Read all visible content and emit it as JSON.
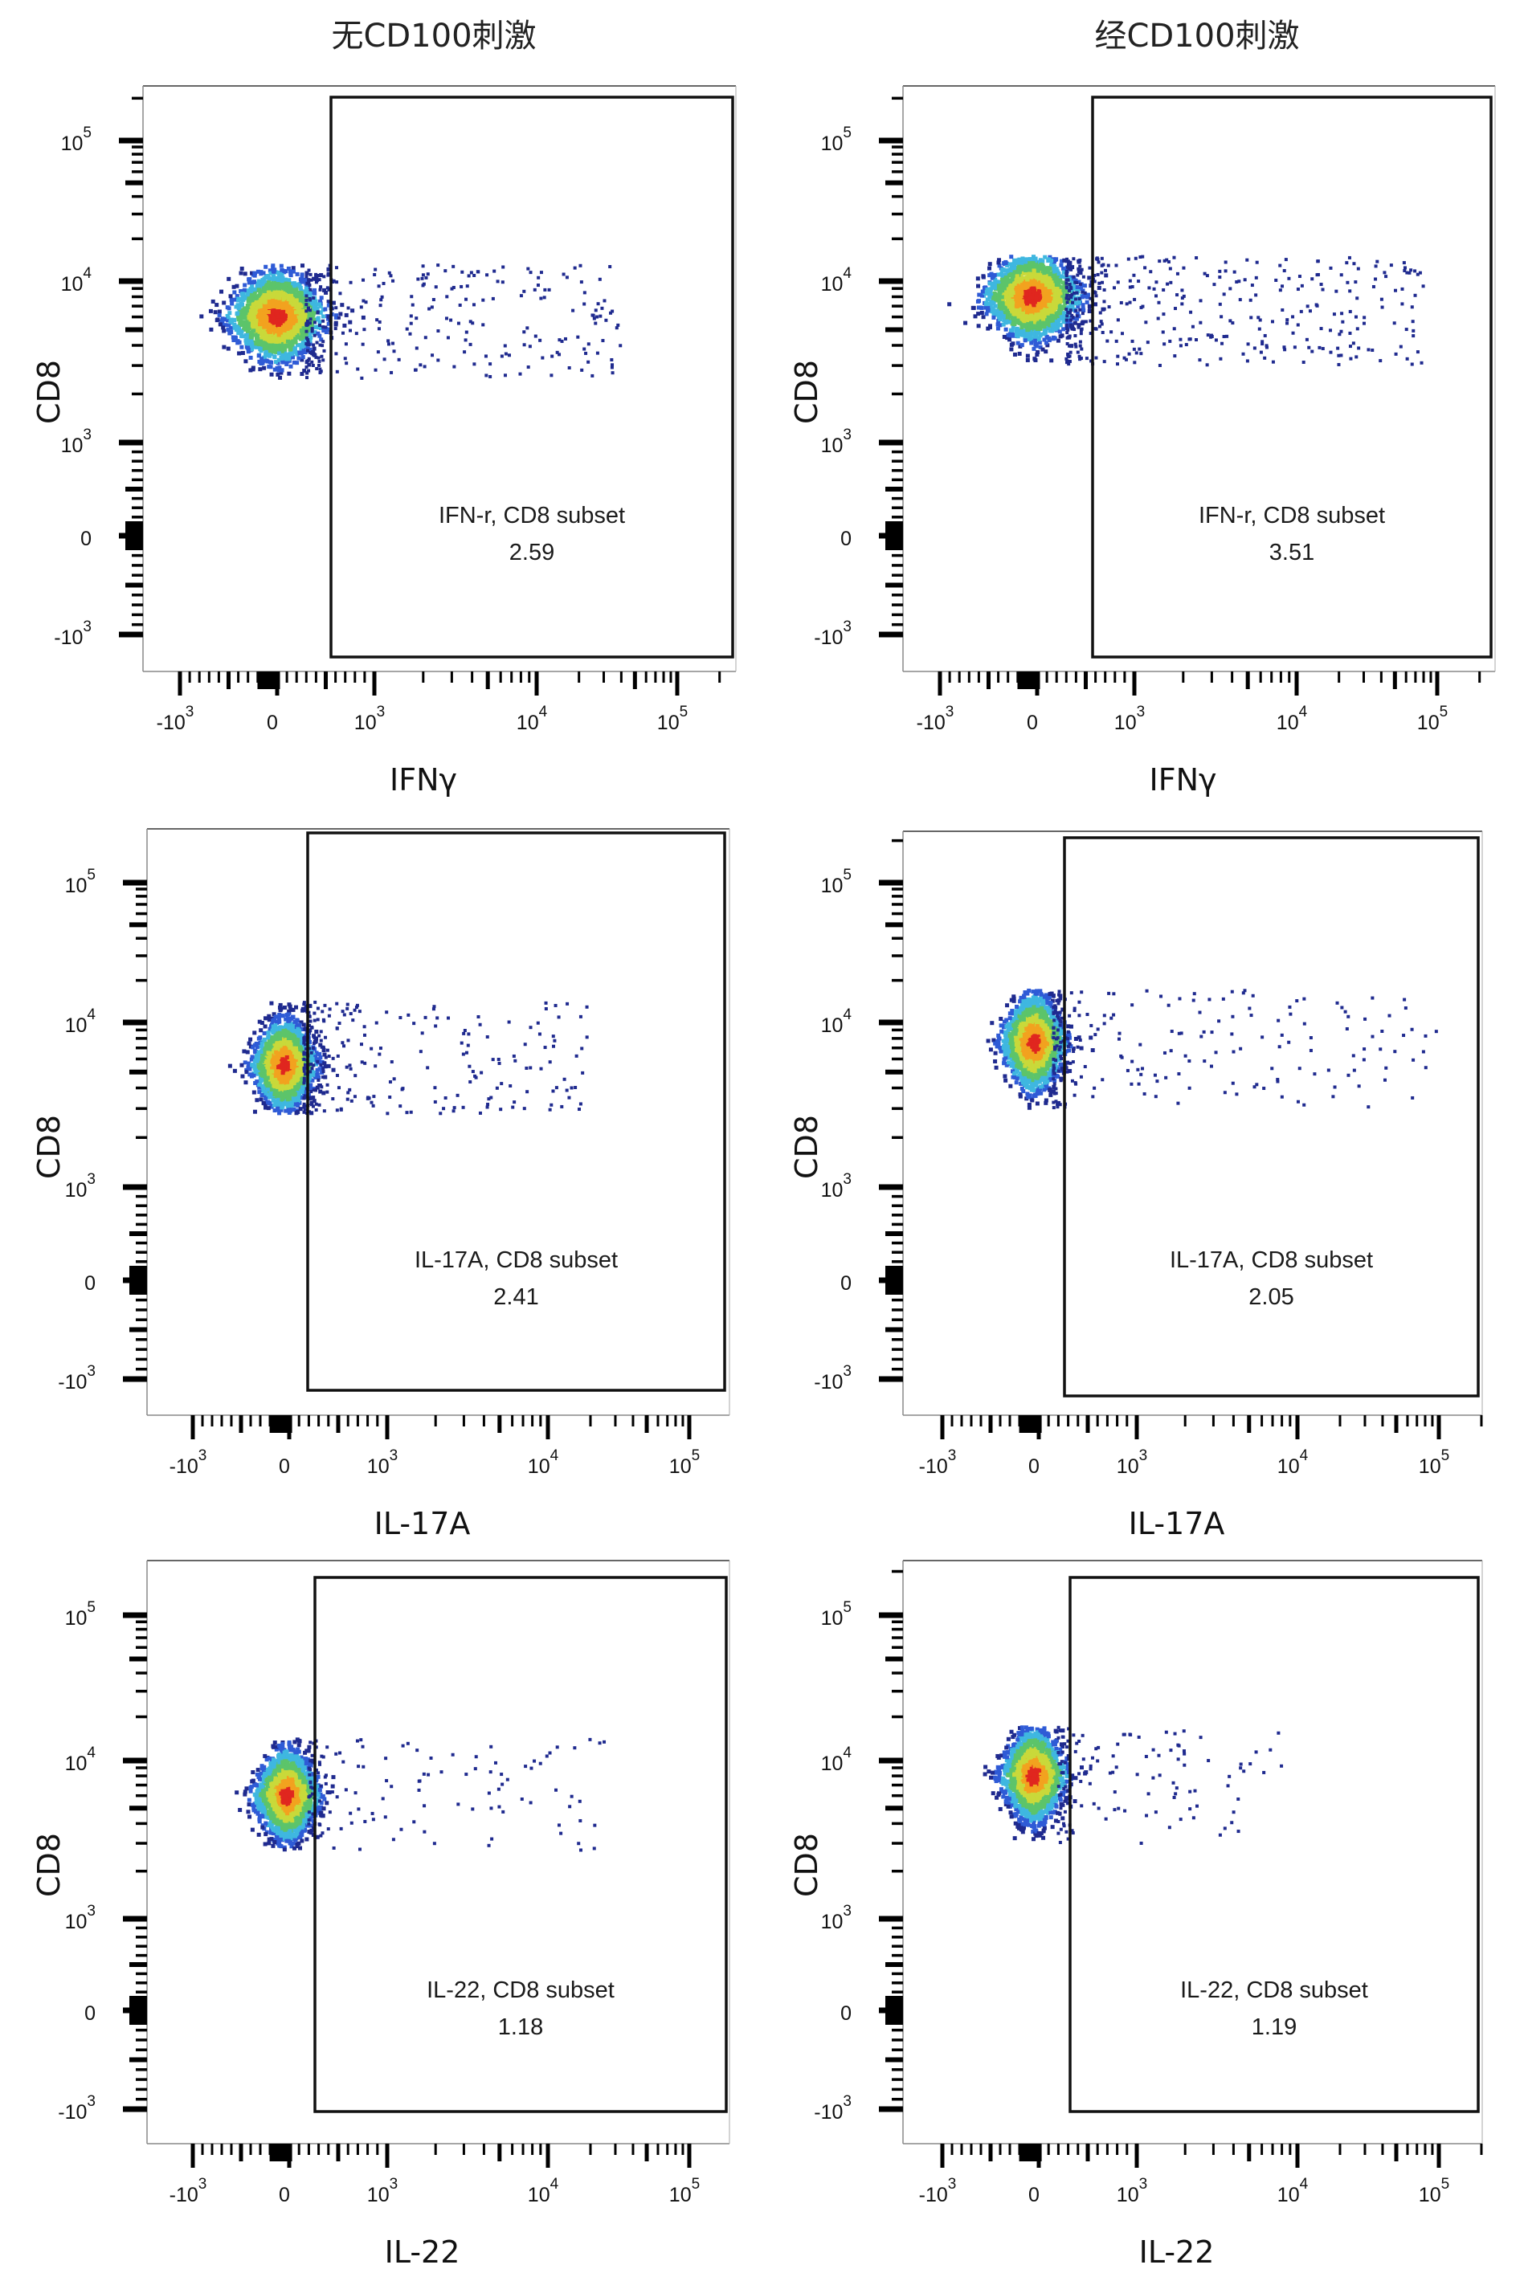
{
  "columns": [
    {
      "title": "无CD100刺激"
    },
    {
      "title": "经CD100刺激"
    }
  ],
  "chart_data": [
    {
      "type": "scatter",
      "panel": "row1-left",
      "column_title": "无CD100刺激",
      "xlabel": "IFNγ",
      "ylabel": "CD8",
      "x_scale": "biexponential",
      "y_scale": "biexponential",
      "x_ticks": [
        {
          "base": "-10",
          "exp": "3",
          "value": -1000
        },
        {
          "base": "0",
          "exp": "",
          "value": 0
        },
        {
          "base": "10",
          "exp": "3",
          "value": 1000
        },
        {
          "base": "10",
          "exp": "4",
          "value": 10000
        },
        {
          "base": "10",
          "exp": "5",
          "value": 100000
        }
      ],
      "y_ticks": [
        {
          "base": "-10",
          "exp": "3",
          "value": -1000
        },
        {
          "base": "0",
          "exp": "",
          "value": 0
        },
        {
          "base": "10",
          "exp": "3",
          "value": 1000
        },
        {
          "base": "10",
          "exp": "4",
          "value": 10000
        },
        {
          "base": "10",
          "exp": "5",
          "value": 100000
        }
      ],
      "gate": {
        "label": "IFN-r, CD8 subset",
        "percent": "2.59",
        "x_min": 300,
        "x_max": 200000,
        "y_min": -1500,
        "y_max": 200000
      },
      "population": {
        "center_x": 0,
        "center_y": 6000,
        "y_range": [
          2500,
          13000
        ],
        "positive_x_range": [
          300,
          40000
        ]
      }
    },
    {
      "type": "scatter",
      "panel": "row1-right",
      "column_title": "经CD100刺激",
      "xlabel": "IFNγ",
      "ylabel": "CD8",
      "x_scale": "biexponential",
      "y_scale": "biexponential",
      "x_ticks": [
        {
          "base": "-10",
          "exp": "3",
          "value": -1000
        },
        {
          "base": "0",
          "exp": "",
          "value": 0
        },
        {
          "base": "10",
          "exp": "3",
          "value": 1000
        },
        {
          "base": "10",
          "exp": "4",
          "value": 10000
        },
        {
          "base": "10",
          "exp": "5",
          "value": 100000
        }
      ],
      "y_ticks": [
        {
          "base": "-10",
          "exp": "3",
          "value": -1000
        },
        {
          "base": "0",
          "exp": "",
          "value": 0
        },
        {
          "base": "10",
          "exp": "3",
          "value": 1000
        },
        {
          "base": "10",
          "exp": "4",
          "value": 10000
        },
        {
          "base": "10",
          "exp": "5",
          "value": 100000
        }
      ],
      "gate": {
        "label": "IFN-r, CD8 subset",
        "percent": "3.51",
        "x_min": 300,
        "x_max": 200000,
        "y_min": -1500,
        "y_max": 200000
      },
      "population": {
        "center_x": -50,
        "center_y": 8000,
        "y_range": [
          3000,
          15000
        ],
        "positive_x_range": [
          300,
          80000
        ]
      }
    },
    {
      "type": "scatter",
      "panel": "row2-left",
      "column_title": "无CD100刺激",
      "xlabel": "IL-17A",
      "ylabel": "CD8",
      "x_scale": "biexponential",
      "y_scale": "biexponential",
      "x_ticks": [
        {
          "base": "-10",
          "exp": "3",
          "value": -1000
        },
        {
          "base": "0",
          "exp": "",
          "value": 0
        },
        {
          "base": "10",
          "exp": "3",
          "value": 1000
        },
        {
          "base": "10",
          "exp": "4",
          "value": 10000
        },
        {
          "base": "10",
          "exp": "5",
          "value": 100000
        }
      ],
      "y_ticks": [
        {
          "base": "-10",
          "exp": "3",
          "value": -1000
        },
        {
          "base": "0",
          "exp": "",
          "value": 0
        },
        {
          "base": "10",
          "exp": "3",
          "value": 1000
        },
        {
          "base": "10",
          "exp": "4",
          "value": 10000
        },
        {
          "base": "10",
          "exp": "5",
          "value": 100000
        }
      ],
      "gate": {
        "label": "IL-17A, CD8 subset",
        "percent": "2.41",
        "x_min": 150,
        "x_max": 200000,
        "y_min": -1500,
        "y_max": 200000
      },
      "population": {
        "center_x": -50,
        "center_y": 5500,
        "y_range": [
          2800,
          14000
        ],
        "positive_x_range": [
          150,
          20000
        ]
      }
    },
    {
      "type": "scatter",
      "panel": "row2-right",
      "column_title": "经CD100刺激",
      "xlabel": "IL-17A",
      "ylabel": "CD8",
      "x_scale": "biexponential",
      "y_scale": "biexponential",
      "x_ticks": [
        {
          "base": "-10",
          "exp": "3",
          "value": -1000
        },
        {
          "base": "0",
          "exp": "",
          "value": 0
        },
        {
          "base": "10",
          "exp": "3",
          "value": 1000
        },
        {
          "base": "10",
          "exp": "4",
          "value": 10000
        },
        {
          "base": "10",
          "exp": "5",
          "value": 100000
        }
      ],
      "y_ticks": [
        {
          "base": "-10",
          "exp": "3",
          "value": -1000
        },
        {
          "base": "0",
          "exp": "",
          "value": 0
        },
        {
          "base": "10",
          "exp": "3",
          "value": 1000
        },
        {
          "base": "10",
          "exp": "4",
          "value": 10000
        },
        {
          "base": "10",
          "exp": "5",
          "value": 100000
        }
      ],
      "gate": {
        "label": "IL-17A, CD8 subset",
        "percent": "2.05",
        "x_min": 150,
        "x_max": 200000,
        "y_min": -1500,
        "y_max": 200000
      },
      "population": {
        "center_x": -50,
        "center_y": 7500,
        "y_range": [
          3000,
          17000
        ],
        "positive_x_range": [
          150,
          100000
        ]
      }
    },
    {
      "type": "scatter",
      "panel": "row3-left",
      "column_title": "无CD100刺激",
      "xlabel": "IL-22",
      "ylabel": "CD8",
      "x_scale": "biexponential",
      "y_scale": "biexponential",
      "x_ticks": [
        {
          "base": "-10",
          "exp": "3",
          "value": -1000
        },
        {
          "base": "0",
          "exp": "",
          "value": 0
        },
        {
          "base": "10",
          "exp": "3",
          "value": 1000
        },
        {
          "base": "10",
          "exp": "4",
          "value": 10000
        },
        {
          "base": "10",
          "exp": "5",
          "value": 100000
        }
      ],
      "y_ticks": [
        {
          "base": "-10",
          "exp": "3",
          "value": -1000
        },
        {
          "base": "0",
          "exp": "",
          "value": 0
        },
        {
          "base": "10",
          "exp": "3",
          "value": 1000
        },
        {
          "base": "10",
          "exp": "4",
          "value": 10000
        },
        {
          "base": "10",
          "exp": "5",
          "value": 100000
        }
      ],
      "gate": {
        "label": "IL-22, CD8 subset",
        "percent": "1.18",
        "x_min": 200,
        "x_max": 200000,
        "y_min": -1500,
        "y_max": 200000
      },
      "population": {
        "center_x": -20,
        "center_y": 6000,
        "y_range": [
          2700,
          14000
        ],
        "positive_x_range": [
          200,
          25000
        ]
      }
    },
    {
      "type": "scatter",
      "panel": "row3-right",
      "column_title": "经CD100刺激",
      "xlabel": "IL-22",
      "ylabel": "CD8",
      "x_scale": "biexponential",
      "y_scale": "biexponential",
      "x_ticks": [
        {
          "base": "-10",
          "exp": "3",
          "value": -1000
        },
        {
          "base": "0",
          "exp": "",
          "value": 0
        },
        {
          "base": "10",
          "exp": "3",
          "value": 1000
        },
        {
          "base": "10",
          "exp": "4",
          "value": 10000
        },
        {
          "base": "10",
          "exp": "5",
          "value": 100000
        }
      ],
      "y_ticks": [
        {
          "base": "-10",
          "exp": "3",
          "value": -1000
        },
        {
          "base": "0",
          "exp": "",
          "value": 0
        },
        {
          "base": "10",
          "exp": "3",
          "value": 1000
        },
        {
          "base": "10",
          "exp": "4",
          "value": 10000
        },
        {
          "base": "10",
          "exp": "5",
          "value": 100000
        }
      ],
      "gate": {
        "label": "IL-22, CD8 subset",
        "percent": "1.19",
        "x_min": 200,
        "x_max": 200000,
        "y_min": -1500,
        "y_max": 200000
      },
      "population": {
        "center_x": -50,
        "center_y": 8000,
        "y_range": [
          3000,
          17000
        ],
        "positive_x_range": [
          200,
          8000
        ]
      }
    }
  ],
  "density_colors": [
    "#1f2a8f",
    "#2f5bd6",
    "#3fb7e0",
    "#5cc46a",
    "#c9d93a",
    "#f2a21f",
    "#e0261f"
  ]
}
